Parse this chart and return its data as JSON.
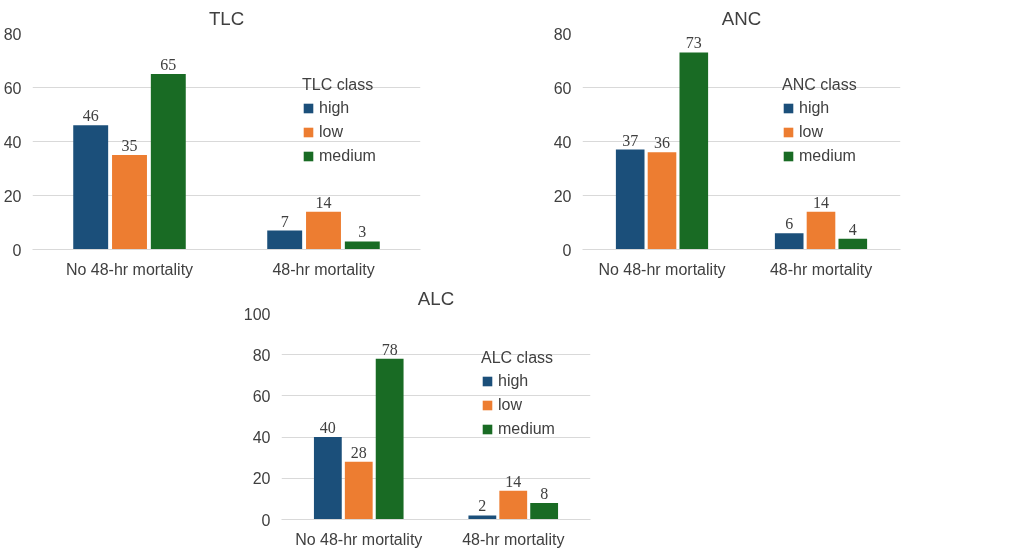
{
  "chart_data": [
    {
      "type": "bar",
      "title": "TLC",
      "categories": [
        "No 48-hr mortality",
        "48-hr mortality"
      ],
      "legend_title": "TLC class",
      "legend": "right",
      "grid": "y",
      "data_labels": true,
      "ylim": [
        0,
        80
      ],
      "yticks": [
        0,
        20,
        40,
        60,
        80
      ],
      "series": [
        {
          "name": "high",
          "color": "#1b4f7a",
          "values": [
            46,
            7
          ]
        },
        {
          "name": "low",
          "color": "#ed7d31",
          "values": [
            35,
            14
          ]
        },
        {
          "name": "medium",
          "color": "#196b24",
          "values": [
            65,
            3
          ]
        }
      ]
    },
    {
      "type": "bar",
      "title": "ANC",
      "categories": [
        "No 48-hr mortality",
        "48-hr mortality"
      ],
      "legend_title": "ANC class",
      "legend": "right",
      "grid": "y",
      "data_labels": true,
      "ylim": [
        0,
        80
      ],
      "yticks": [
        0,
        20,
        40,
        60,
        80
      ],
      "series": [
        {
          "name": "high",
          "color": "#1b4f7a",
          "values": [
            37,
            6
          ]
        },
        {
          "name": "low",
          "color": "#ed7d31",
          "values": [
            36,
            14
          ]
        },
        {
          "name": "medium",
          "color": "#196b24",
          "values": [
            73,
            4
          ]
        }
      ]
    },
    {
      "type": "bar",
      "title": "ALC",
      "categories": [
        "No 48-hr mortality",
        "48-hr mortality"
      ],
      "legend_title": "ALC class",
      "legend": "right",
      "grid": "y",
      "data_labels": true,
      "ylim": [
        0,
        100
      ],
      "yticks": [
        0,
        20,
        40,
        60,
        80,
        100
      ],
      "series": [
        {
          "name": "high",
          "color": "#1b4f7a",
          "values": [
            40,
            2
          ]
        },
        {
          "name": "low",
          "color": "#ed7d31",
          "values": [
            28,
            14
          ]
        },
        {
          "name": "medium",
          "color": "#196b24",
          "values": [
            78,
            8
          ]
        }
      ]
    }
  ]
}
